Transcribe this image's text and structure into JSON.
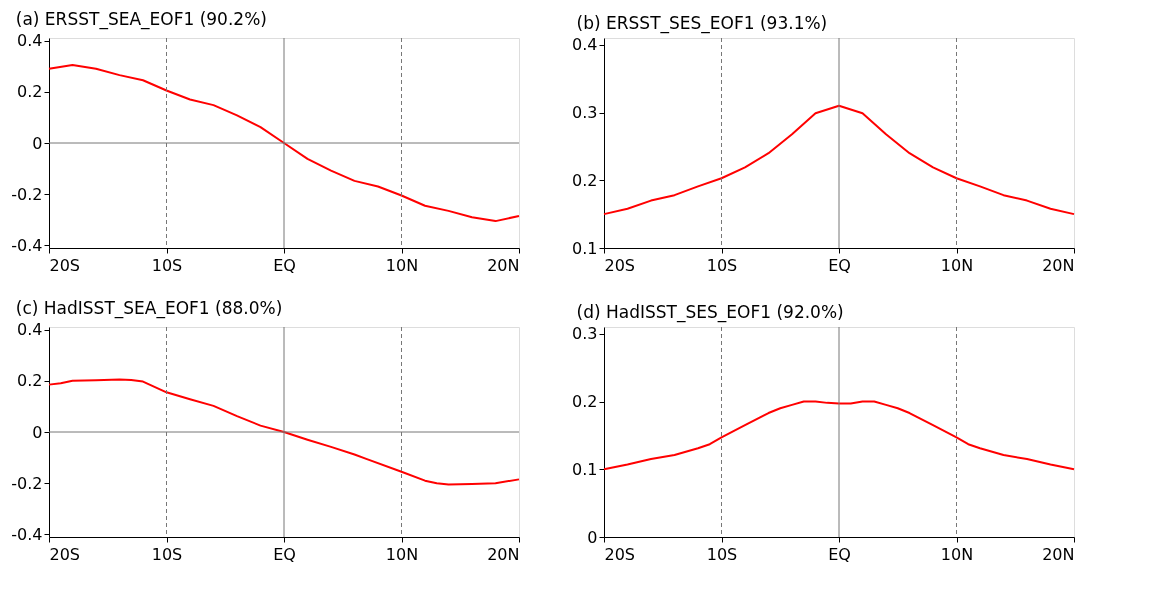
{
  "chart_data": [
    {
      "type": "line",
      "title": "(a) ERSST_SEA_EOF1 (90.2%)",
      "x": [
        -20,
        -18,
        -16,
        -14,
        -12,
        -10,
        -8,
        -6,
        -4,
        -2,
        0,
        2,
        4,
        6,
        8,
        10,
        12,
        14,
        16,
        18,
        20
      ],
      "series": [
        {
          "color": "#ff0000",
          "values": [
            0.29,
            0.305,
            0.29,
            0.265,
            0.245,
            0.205,
            0.17,
            0.148,
            0.108,
            0.062,
            0.0,
            -0.062,
            -0.108,
            -0.148,
            -0.17,
            -0.205,
            -0.245,
            -0.265,
            -0.29,
            -0.305,
            -0.285
          ]
        }
      ],
      "xlim": [
        -20,
        20
      ],
      "xticks": [
        {
          "value": -20,
          "label": "20S"
        },
        {
          "value": -10,
          "label": "10S"
        },
        {
          "value": 0,
          "label": "EQ"
        },
        {
          "value": 10,
          "label": "10N"
        },
        {
          "value": 20,
          "label": "20N"
        }
      ],
      "ylim": [
        -0.41,
        0.41
      ],
      "yticks": [
        -0.4,
        -0.2,
        0,
        0.2,
        0.4
      ],
      "grid": false,
      "line_style": "solid",
      "marker": "none",
      "ref_lines": [
        {
          "axis": "x",
          "value": -10,
          "color": "#777777",
          "line_style": "dashed"
        },
        {
          "axis": "x",
          "value": 0,
          "color": "#777777",
          "line_style": "solid"
        },
        {
          "axis": "x",
          "value": 10,
          "color": "#777777",
          "line_style": "dashed"
        },
        {
          "axis": "y",
          "value": 0,
          "color": "#777777",
          "line_style": "solid"
        }
      ]
    },
    {
      "type": "line",
      "title": "(b) ERSST_SES_EOF1 (93.1%)",
      "x": [
        -20,
        -18,
        -16,
        -14,
        -12,
        -10,
        -8,
        -6,
        -4,
        -2,
        0,
        2,
        4,
        6,
        8,
        10,
        12,
        14,
        16,
        18,
        20
      ],
      "series": [
        {
          "color": "#ff0000",
          "values": [
            0.15,
            0.158,
            0.17,
            0.178,
            0.191,
            0.203,
            0.219,
            0.24,
            0.268,
            0.299,
            0.31,
            0.299,
            0.268,
            0.24,
            0.219,
            0.203,
            0.191,
            0.178,
            0.17,
            0.158,
            0.15
          ]
        }
      ],
      "xlim": [
        -20,
        20
      ],
      "xticks": [
        {
          "value": -20,
          "label": "20S"
        },
        {
          "value": -10,
          "label": "10S"
        },
        {
          "value": 0,
          "label": "EQ"
        },
        {
          "value": 10,
          "label": "10N"
        },
        {
          "value": 20,
          "label": "20N"
        }
      ],
      "ylim": [
        0.1,
        0.41
      ],
      "yticks": [
        0.1,
        0.2,
        0.3,
        0.4
      ],
      "grid": false,
      "line_style": "solid",
      "marker": "none",
      "ref_lines": [
        {
          "axis": "x",
          "value": -10,
          "color": "#777777",
          "line_style": "dashed"
        },
        {
          "axis": "x",
          "value": 0,
          "color": "#777777",
          "line_style": "solid"
        },
        {
          "axis": "x",
          "value": 10,
          "color": "#777777",
          "line_style": "dashed"
        }
      ]
    },
    {
      "type": "line",
      "title": "(c) HadISST_SEA_EOF1 (88.0%)",
      "x": [
        -20,
        -19,
        -18,
        -16,
        -14,
        -13,
        -12,
        -10,
        -8,
        -6,
        -4,
        -2,
        0,
        2,
        4,
        6,
        7,
        10,
        12,
        13,
        14,
        16,
        18,
        20
      ],
      "series": [
        {
          "color": "#ff0000",
          "values": [
            0.185,
            0.19,
            0.2,
            0.202,
            0.205,
            0.203,
            0.197,
            0.155,
            0.128,
            0.102,
            0.062,
            0.025,
            0.0,
            -0.03,
            -0.058,
            -0.088,
            -0.105,
            -0.155,
            -0.19,
            -0.2,
            -0.205,
            -0.203,
            -0.2,
            -0.185
          ]
        }
      ],
      "xlim": [
        -20,
        20
      ],
      "xticks": [
        {
          "value": -20,
          "label": "20S"
        },
        {
          "value": -10,
          "label": "10S"
        },
        {
          "value": 0,
          "label": "EQ"
        },
        {
          "value": 10,
          "label": "10N"
        },
        {
          "value": 20,
          "label": "20N"
        }
      ],
      "ylim": [
        -0.41,
        0.41
      ],
      "yticks": [
        -0.4,
        -0.2,
        0,
        0.2,
        0.4
      ],
      "grid": false,
      "line_style": "solid",
      "marker": "none",
      "ref_lines": [
        {
          "axis": "x",
          "value": -10,
          "color": "#777777",
          "line_style": "dashed"
        },
        {
          "axis": "x",
          "value": 0,
          "color": "#777777",
          "line_style": "solid"
        },
        {
          "axis": "x",
          "value": 10,
          "color": "#777777",
          "line_style": "dashed"
        },
        {
          "axis": "y",
          "value": 0,
          "color": "#777777",
          "line_style": "solid"
        }
      ]
    },
    {
      "type": "line",
      "title": "(d) HadISST_SES_EOF1 (92.0%)",
      "x": [
        -20,
        -18,
        -16,
        -14,
        -12,
        -11,
        -10,
        -8,
        -6,
        -5,
        -4,
        -3,
        -2,
        -1,
        0,
        1,
        2,
        3,
        4,
        5,
        6,
        8,
        10,
        11,
        12,
        14,
        16,
        18,
        20
      ],
      "series": [
        {
          "color": "#ff0000",
          "values": [
            0.1,
            0.107,
            0.115,
            0.121,
            0.131,
            0.137,
            0.147,
            0.165,
            0.183,
            0.19,
            0.195,
            0.2,
            0.2,
            0.198,
            0.197,
            0.197,
            0.2,
            0.2,
            0.195,
            0.19,
            0.183,
            0.165,
            0.147,
            0.137,
            0.131,
            0.121,
            0.115,
            0.107,
            0.1
          ]
        }
      ],
      "xlim": [
        -20,
        20
      ],
      "xticks": [
        {
          "value": -20,
          "label": "20S"
        },
        {
          "value": -10,
          "label": "10S"
        },
        {
          "value": 0,
          "label": "EQ"
        },
        {
          "value": 10,
          "label": "10N"
        },
        {
          "value": 20,
          "label": "20N"
        }
      ],
      "ylim": [
        0,
        0.31
      ],
      "yticks": [
        0,
        0.1,
        0.2,
        0.3
      ],
      "grid": false,
      "line_style": "solid",
      "marker": "none",
      "ref_lines": [
        {
          "axis": "x",
          "value": -10,
          "color": "#777777",
          "line_style": "dashed"
        },
        {
          "axis": "x",
          "value": 0,
          "color": "#777777",
          "line_style": "solid"
        },
        {
          "axis": "x",
          "value": 10,
          "color": "#777777",
          "line_style": "dashed"
        }
      ]
    }
  ]
}
